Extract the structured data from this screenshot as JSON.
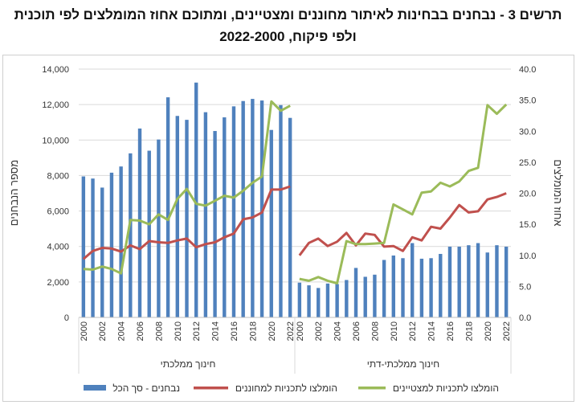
{
  "title_line1": "תרשים 3 - נבחנים בבחינות לאיתור מחוננים ומצטיינים, ומתוכם אחוז המומלצים לפי תוכנית",
  "title_line2": "ולפי פיקוח, 2022-2000",
  "chart_data": {
    "type": "bar+line",
    "title": "תרשים 3 - נבחנים בבחינות לאיתור מחוננים ומצטיינים, ומתוכם אחוז המומלצים לפי תוכנית ולפי פיקוח, 2022-2000",
    "ylabel_left": "מספר הנבחנים",
    "ylabel_right": "אחוז המומלצים",
    "ylim_left": [
      0,
      14000
    ],
    "ylim_right": [
      0,
      40
    ],
    "yticks_left": [
      "0",
      "2,000",
      "4,000",
      "6,000",
      "8,000",
      "10,000",
      "12,000",
      "14,000"
    ],
    "yticks_right": [
      "0.0",
      "5.0",
      "10.0",
      "15.0",
      "20.0",
      "25.0",
      "30.0",
      "35.0",
      "40.0"
    ],
    "grid": true,
    "legend_position": "bottom",
    "colors": {
      "bars": "#4f81bd",
      "gifted": "#c0504d",
      "excellent": "#9bbb59"
    },
    "legend": [
      "נבחנים - סך הכל",
      "הומלצו לתכניות למחוננים",
      "הומלצו לתכניות למצטיינים"
    ],
    "years": [
      2000,
      2001,
      2002,
      2003,
      2004,
      2005,
      2006,
      2007,
      2008,
      2009,
      2010,
      2011,
      2012,
      2013,
      2014,
      2015,
      2016,
      2017,
      2018,
      2019,
      2020,
      2021,
      2022
    ],
    "groups": [
      {
        "name": "חינוך ממלכתי",
        "examinees_total": [
          7950,
          7830,
          7320,
          8160,
          8510,
          9250,
          10650,
          9400,
          10030,
          12410,
          11360,
          11140,
          13240,
          11570,
          10510,
          11280,
          11900,
          12200,
          12320,
          12230,
          10570,
          11970,
          11250
        ],
        "recommended_gifted_pct": [
          9.4,
          10.7,
          11.2,
          11.1,
          10.6,
          11.6,
          11.0,
          12.3,
          12.1,
          12.0,
          12.4,
          12.7,
          11.3,
          11.8,
          12.1,
          12.9,
          13.5,
          15.8,
          16.1,
          16.9,
          20.6,
          20.6,
          21.1
        ],
        "recommended_excellent_pct": [
          7.8,
          7.7,
          8.2,
          7.8,
          7.1,
          15.7,
          15.6,
          15.0,
          16.6,
          15.7,
          19.1,
          20.7,
          18.3,
          18.0,
          18.8,
          19.6,
          19.3,
          20.4,
          21.7,
          22.7,
          34.8,
          33.3,
          34.1
        ]
      },
      {
        "name": "חינוך ממלכתי-דתי",
        "examinees_total": [
          1960,
          1810,
          1660,
          1910,
          1880,
          2110,
          2790,
          2290,
          2410,
          3240,
          3490,
          3340,
          4190,
          3310,
          3340,
          3580,
          3990,
          3990,
          4070,
          4190,
          3660,
          4070,
          3990
        ],
        "recommended_gifted_pct": [
          10.0,
          12.0,
          12.7,
          11.5,
          12.2,
          13.6,
          11.6,
          13.5,
          13.3,
          11.4,
          11.5,
          10.7,
          12.9,
          12.4,
          14.6,
          14.3,
          16.1,
          18.1,
          16.9,
          17.1,
          19.0,
          19.4,
          20.0
        ],
        "recommended_excellent_pct": [
          6.2,
          5.9,
          6.5,
          5.9,
          5.5,
          12.3,
          11.8,
          11.8,
          11.9,
          12.0,
          18.2,
          17.4,
          16.6,
          20.1,
          20.3,
          21.7,
          21.1,
          21.9,
          23.6,
          24.1,
          34.2,
          32.8,
          34.3
        ]
      }
    ]
  }
}
